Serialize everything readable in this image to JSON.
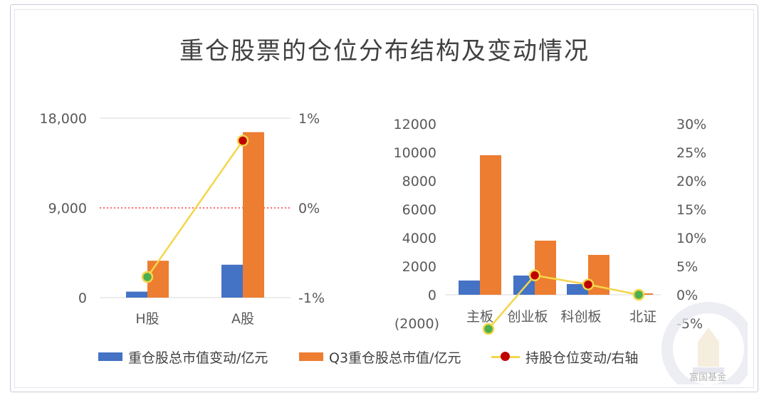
{
  "title": "重仓股票的仓位分布结构及变动情况",
  "legend": {
    "series1": "重仓股总市值变动/亿元",
    "series2": "Q3重仓股总市值/亿元",
    "series3": "持股仓位变动/右轴"
  },
  "watermark": "富国基金",
  "colors": {
    "blue": "#4472c4",
    "orange": "#ed7d31",
    "line": "#f5d64a",
    "marker_red": "#c00000",
    "marker_green": "#4caf50",
    "zero_line": "#ff3b3b"
  },
  "chart_data": [
    {
      "type": "bar",
      "categories": [
        "H股",
        "A股"
      ],
      "series": [
        {
          "name": "重仓股总市值变动/亿元",
          "values": [
            600,
            3300
          ],
          "axis": "left"
        },
        {
          "name": "Q3重仓股总市值/亿元",
          "values": [
            3700,
            16600
          ],
          "axis": "left"
        },
        {
          "name": "持股仓位变动/右轴",
          "values": [
            -0.77,
            0.75
          ],
          "axis": "right",
          "render": "line"
        }
      ],
      "left_axis": {
        "ylim": [
          0,
          18000
        ],
        "ticks": [
          "0",
          "9,000",
          "18,000"
        ]
      },
      "right_axis": {
        "ylim": [
          -1,
          1
        ],
        "ticks": [
          "-1%",
          "0%",
          "1%"
        ]
      },
      "reference_line": "0%"
    },
    {
      "type": "bar",
      "categories": [
        "主板",
        "创业板",
        "科创板",
        "北证"
      ],
      "series": [
        {
          "name": "重仓股总市值变动/亿元",
          "values": [
            1000,
            1350,
            750,
            0
          ],
          "axis": "left"
        },
        {
          "name": "Q3重仓股总市值/亿元",
          "values": [
            9800,
            3800,
            2800,
            100
          ],
          "axis": "left"
        },
        {
          "name": "持股仓位变动/右轴",
          "values": [
            -6,
            3.4,
            1.8,
            0
          ],
          "axis": "right",
          "render": "line"
        }
      ],
      "left_axis": {
        "ylim": [
          -2000,
          12000
        ],
        "ticks": [
          "(2000)",
          "0",
          "2000",
          "4000",
          "6000",
          "8000",
          "10000",
          "12000"
        ]
      },
      "right_axis": {
        "ylim": [
          -5,
          30
        ],
        "ticks": [
          "-5%",
          "0%",
          "5%",
          "10%",
          "15%",
          "20%",
          "25%",
          "30%"
        ]
      }
    }
  ]
}
